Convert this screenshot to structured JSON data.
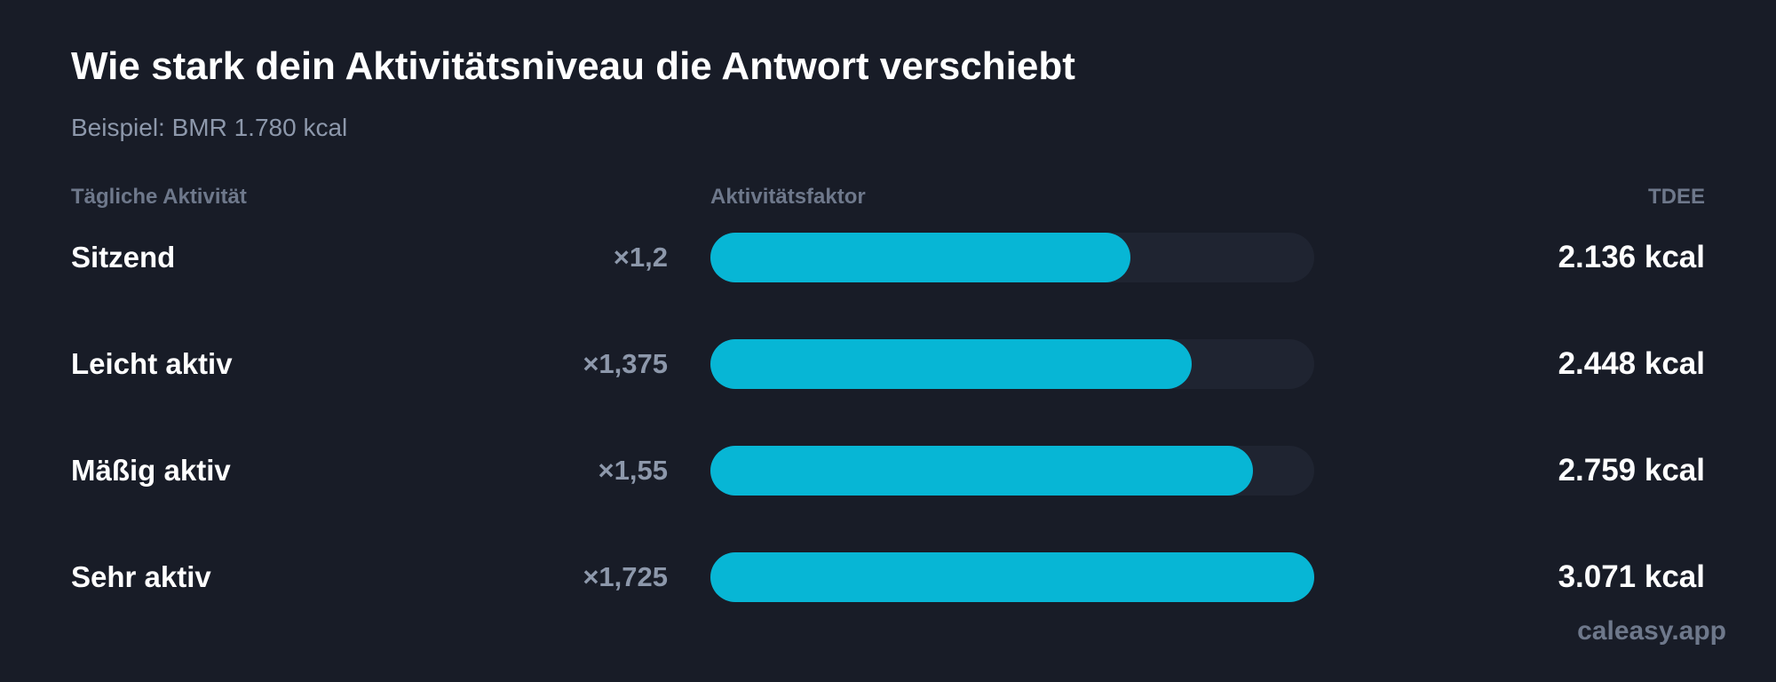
{
  "title": "Wie stark dein Aktivitätsniveau die Antwort verschiebt",
  "subtitle": "Beispiel: BMR 1.780 kcal",
  "columns": {
    "activity": "Tägliche Aktivität",
    "factor": "Aktivitätsfaktor",
    "tdee": "TDEE"
  },
  "brand": "caleasy.app",
  "colors": {
    "background": "#181c27",
    "bar": "#07b6d5",
    "track": "#1f2431",
    "text": "#ffffff",
    "muted": "#8d98ab"
  },
  "chart_data": {
    "type": "bar",
    "orientation": "horizontal",
    "title": "Wie stark dein Aktivitätsniveau die Antwort verschiebt",
    "subtitle": "Beispiel: BMR 1.780 kcal",
    "categories": [
      "Sitzend",
      "Leicht aktiv",
      "Mäßig aktiv",
      "Sehr aktiv"
    ],
    "multiplier_labels": [
      "×1,2",
      "×1,375",
      "×1,55",
      "×1,725"
    ],
    "values": [
      1.2,
      1.375,
      1.55,
      1.725
    ],
    "value_labels": [
      "2.136 kcal",
      "2.448 kcal",
      "2.759 kcal",
      "3.071 kcal"
    ],
    "xlim": [
      0,
      1.725
    ],
    "grid": false,
    "legend": "none"
  }
}
